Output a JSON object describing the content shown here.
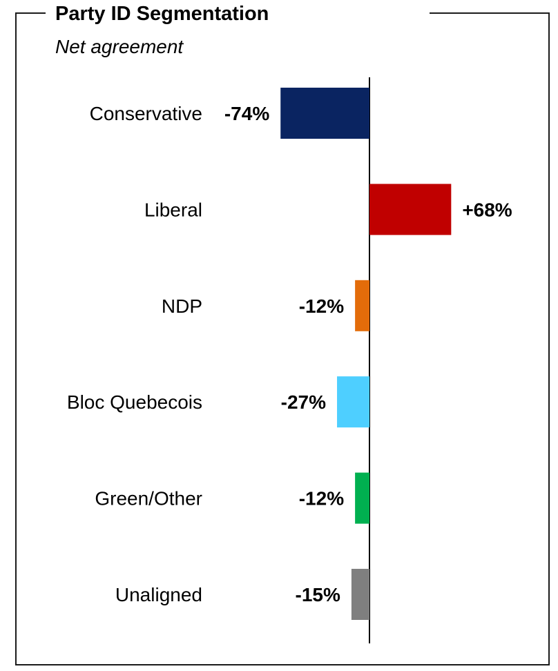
{
  "chart_data": {
    "type": "bar",
    "orientation": "horizontal",
    "title": "Party ID Segmentation",
    "subtitle": "Net agreement",
    "categories": [
      "Conservative",
      "Liberal",
      "NDP",
      "Bloc Quebecois",
      "Green/Other",
      "Unaligned"
    ],
    "values": [
      -74,
      68,
      -12,
      -27,
      -12,
      -15
    ],
    "value_labels": [
      "-74%",
      "+68%",
      "-12%",
      "-27%",
      "-12%",
      "-15%"
    ],
    "colors": [
      "#0a2461",
      "#c00000",
      "#e36c0a",
      "#4ecfff",
      "#00b050",
      "#7f7f7f"
    ],
    "xlim": [
      -100,
      100
    ],
    "grid": false,
    "legend": "none"
  }
}
